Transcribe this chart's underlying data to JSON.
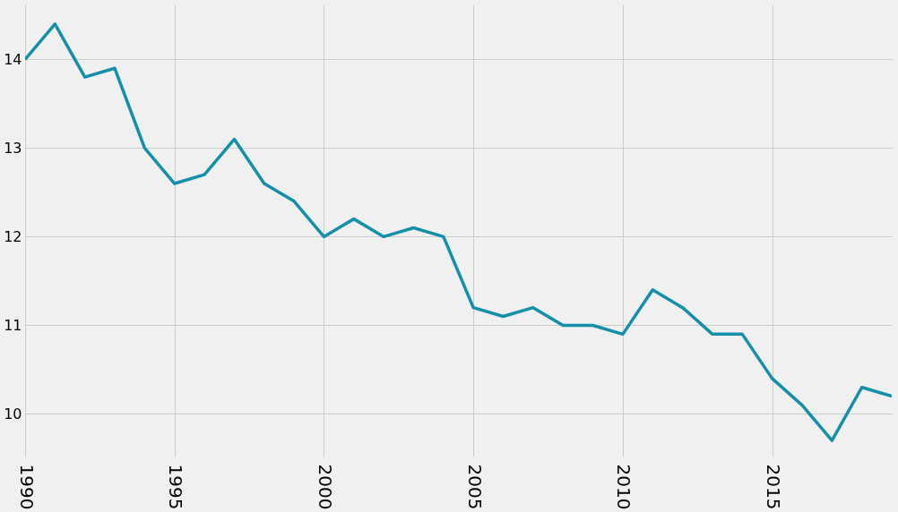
{
  "chart_data": {
    "type": "line",
    "x": [
      1990,
      1991,
      1992,
      1993,
      1994,
      1995,
      1996,
      1997,
      1998,
      1999,
      2000,
      2001,
      2002,
      2003,
      2004,
      2005,
      2006,
      2007,
      2008,
      2009,
      2010,
      2011,
      2012,
      2013,
      2014,
      2015,
      2016,
      2017,
      2018,
      2019
    ],
    "series": [
      {
        "color": "#138fa9",
        "values": [
          14.0,
          14.4,
          13.8,
          13.9,
          13.0,
          12.6,
          12.7,
          13.1,
          12.6,
          12.4,
          12.0,
          12.2,
          12.0,
          12.1,
          12.0,
          11.2,
          11.1,
          11.2,
          11.0,
          11.0,
          10.9,
          11.4,
          11.2,
          10.9,
          10.9,
          10.4,
          10.1,
          9.7,
          10.3,
          10.2
        ]
      }
    ],
    "xlim": [
      1990,
      2019
    ],
    "xticks": [
      1990,
      1995,
      2000,
      2005,
      2010,
      2015
    ],
    "ylim": [
      9.52,
      14.62
    ],
    "yticks": [
      10,
      11,
      12,
      13,
      14
    ],
    "grid": true,
    "line_style": "solid",
    "marker": "none"
  }
}
